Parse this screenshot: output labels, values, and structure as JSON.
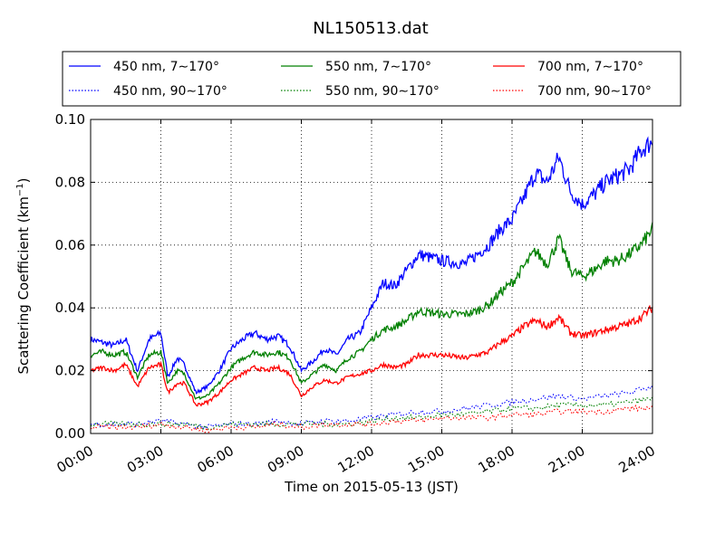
{
  "chart_data": {
    "type": "line",
    "title": "NL150513.dat",
    "xlabel": "Time on 2015-05-13 (JST)",
    "ylabel_main": "Scattering Coefficient (km",
    "ylabel_sup": "−1",
    "ylabel_end": ")",
    "x_ticks": [
      "00:00",
      "03:00",
      "06:00",
      "09:00",
      "12:00",
      "15:00",
      "18:00",
      "21:00",
      "24:00"
    ],
    "y_ticks": [
      "0.00",
      "0.02",
      "0.04",
      "0.06",
      "0.08",
      "0.10"
    ],
    "xlim_hours": [
      0,
      24
    ],
    "ylim": [
      0,
      0.1
    ],
    "grid": true,
    "legend_position": "top, above plot",
    "series": [
      {
        "name": "450 nm, 7∼170°",
        "color": "#0000ff",
        "style": "solid",
        "x": [
          0,
          0.5,
          1,
          1.5,
          2,
          2.5,
          3,
          3.3,
          3.7,
          4,
          4.5,
          5,
          5.5,
          6,
          6.5,
          7,
          7.5,
          8,
          8.5,
          9,
          9.5,
          10,
          10.5,
          11,
          11.5,
          12,
          12.5,
          13,
          13.5,
          14,
          15,
          16,
          16.5,
          17,
          17.5,
          18,
          18.5,
          19,
          19.5,
          20,
          20.5,
          21,
          21.5,
          22,
          22.5,
          23,
          23.5,
          24
        ],
        "y": [
          0.03,
          0.029,
          0.028,
          0.03,
          0.02,
          0.03,
          0.032,
          0.018,
          0.024,
          0.022,
          0.013,
          0.015,
          0.02,
          0.027,
          0.03,
          0.032,
          0.03,
          0.031,
          0.028,
          0.02,
          0.023,
          0.027,
          0.025,
          0.03,
          0.032,
          0.04,
          0.048,
          0.047,
          0.052,
          0.057,
          0.055,
          0.054,
          0.057,
          0.06,
          0.065,
          0.068,
          0.075,
          0.083,
          0.08,
          0.088,
          0.077,
          0.073,
          0.076,
          0.08,
          0.082,
          0.084,
          0.09,
          0.093
        ]
      },
      {
        "name": "550 nm, 7∼170°",
        "color": "#008000",
        "style": "solid",
        "x": [
          0,
          0.5,
          1,
          1.5,
          2,
          2.5,
          3,
          3.3,
          3.7,
          4,
          4.5,
          5,
          5.5,
          6,
          6.5,
          7,
          7.5,
          8,
          8.5,
          9,
          9.5,
          10,
          10.5,
          11,
          11.5,
          12,
          12.5,
          13,
          13.5,
          14,
          15,
          16,
          16.5,
          17,
          17.5,
          18,
          18.5,
          19,
          19.5,
          20,
          20.5,
          21,
          21.5,
          22,
          22.5,
          23,
          23.5,
          24
        ],
        "y": [
          0.025,
          0.026,
          0.025,
          0.026,
          0.018,
          0.025,
          0.026,
          0.016,
          0.02,
          0.019,
          0.011,
          0.012,
          0.016,
          0.021,
          0.024,
          0.026,
          0.025,
          0.026,
          0.024,
          0.016,
          0.019,
          0.022,
          0.02,
          0.024,
          0.026,
          0.03,
          0.033,
          0.034,
          0.036,
          0.039,
          0.038,
          0.038,
          0.039,
          0.041,
          0.045,
          0.048,
          0.053,
          0.058,
          0.054,
          0.062,
          0.052,
          0.05,
          0.052,
          0.055,
          0.055,
          0.057,
          0.06,
          0.065
        ]
      },
      {
        "name": "700 nm, 7∼170°",
        "color": "#ff0000",
        "style": "solid",
        "x": [
          0,
          0.5,
          1,
          1.5,
          2,
          2.5,
          3,
          3.3,
          3.7,
          4,
          4.5,
          5,
          5.5,
          6,
          6.5,
          7,
          7.5,
          8,
          8.5,
          9,
          9.5,
          10,
          10.5,
          11,
          11.5,
          12,
          12.5,
          13,
          13.5,
          14,
          15,
          16,
          16.5,
          17,
          17.5,
          18,
          18.5,
          19,
          19.5,
          20,
          20.5,
          21,
          21.5,
          22,
          22.5,
          23,
          23.5,
          24
        ],
        "y": [
          0.02,
          0.021,
          0.02,
          0.022,
          0.015,
          0.021,
          0.022,
          0.013,
          0.016,
          0.016,
          0.009,
          0.01,
          0.013,
          0.017,
          0.019,
          0.021,
          0.02,
          0.021,
          0.019,
          0.012,
          0.015,
          0.017,
          0.016,
          0.018,
          0.019,
          0.02,
          0.022,
          0.021,
          0.022,
          0.025,
          0.025,
          0.024,
          0.025,
          0.026,
          0.029,
          0.031,
          0.034,
          0.036,
          0.034,
          0.037,
          0.032,
          0.031,
          0.032,
          0.033,
          0.034,
          0.035,
          0.037,
          0.04
        ]
      },
      {
        "name": "450 nm, 90∼170°",
        "color": "#0000ff",
        "style": "dotted",
        "x": [
          0,
          2,
          3,
          4,
          5,
          6,
          7,
          8,
          9,
          10,
          11,
          12,
          13,
          14,
          15,
          16,
          17,
          18,
          19,
          20,
          21,
          22,
          23,
          24
        ],
        "y": [
          0.003,
          0.003,
          0.004,
          0.003,
          0.002,
          0.003,
          0.003,
          0.004,
          0.003,
          0.004,
          0.004,
          0.005,
          0.006,
          0.007,
          0.007,
          0.008,
          0.009,
          0.01,
          0.011,
          0.012,
          0.011,
          0.012,
          0.013,
          0.015
        ]
      },
      {
        "name": "550 nm, 90∼170°",
        "color": "#008000",
        "style": "dotted",
        "x": [
          0,
          2,
          3,
          4,
          5,
          6,
          7,
          8,
          9,
          10,
          11,
          12,
          13,
          14,
          15,
          16,
          17,
          18,
          19,
          20,
          21,
          22,
          23,
          24
        ],
        "y": [
          0.003,
          0.003,
          0.003,
          0.003,
          0.002,
          0.003,
          0.003,
          0.003,
          0.003,
          0.003,
          0.003,
          0.004,
          0.005,
          0.005,
          0.006,
          0.006,
          0.007,
          0.008,
          0.008,
          0.009,
          0.009,
          0.009,
          0.01,
          0.011
        ]
      },
      {
        "name": "700 nm, 90∼170°",
        "color": "#ff0000",
        "style": "dotted",
        "x": [
          0,
          2,
          3,
          4,
          5,
          6,
          7,
          8,
          9,
          10,
          11,
          12,
          13,
          14,
          15,
          16,
          17,
          18,
          19,
          20,
          21,
          22,
          23,
          24
        ],
        "y": [
          0.002,
          0.002,
          0.003,
          0.002,
          0.001,
          0.002,
          0.002,
          0.003,
          0.002,
          0.003,
          0.003,
          0.003,
          0.004,
          0.004,
          0.005,
          0.005,
          0.005,
          0.006,
          0.006,
          0.007,
          0.007,
          0.007,
          0.008,
          0.008
        ]
      }
    ]
  }
}
